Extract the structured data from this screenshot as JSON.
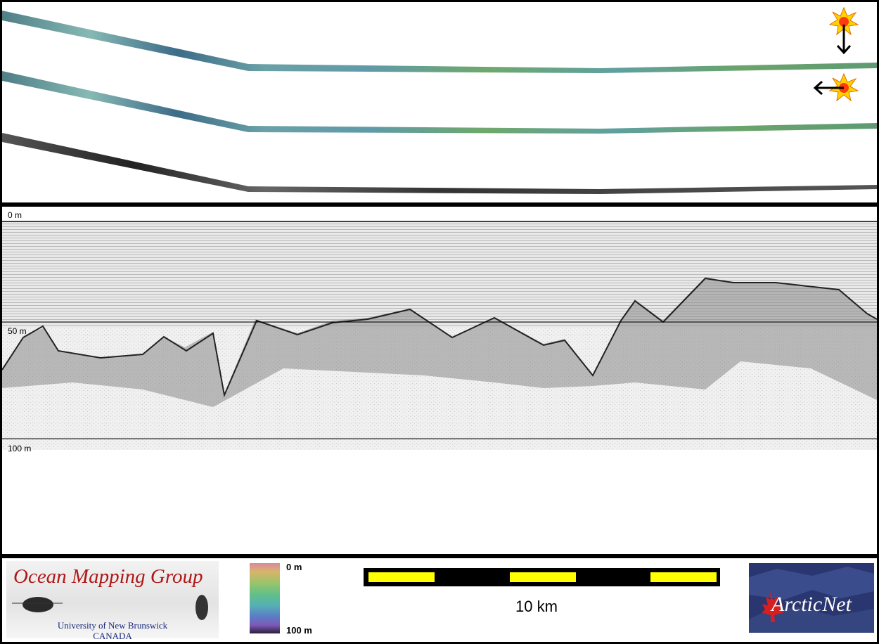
{
  "profile": {
    "depth_labels": {
      "d0": "0 m",
      "d50": "50 m",
      "d100": "100 m"
    }
  },
  "legend": {
    "omg_title": "Ocean Mapping Group",
    "omg_university": "University of New Brunswick",
    "omg_country": "CANADA",
    "colorbar_top": "0 m",
    "colorbar_bottom": "100 m",
    "scale_label": "10 km",
    "arcticnet_text": "ArcticNet"
  },
  "colors": {
    "scale_yellow": "#ffff00",
    "omg_red": "#b01818",
    "arcticnet_blue": "#2a3670"
  },
  "icons": [
    "sun-icon",
    "arrow-down-icon",
    "arrow-left-icon",
    "maple-leaf-icon"
  ]
}
